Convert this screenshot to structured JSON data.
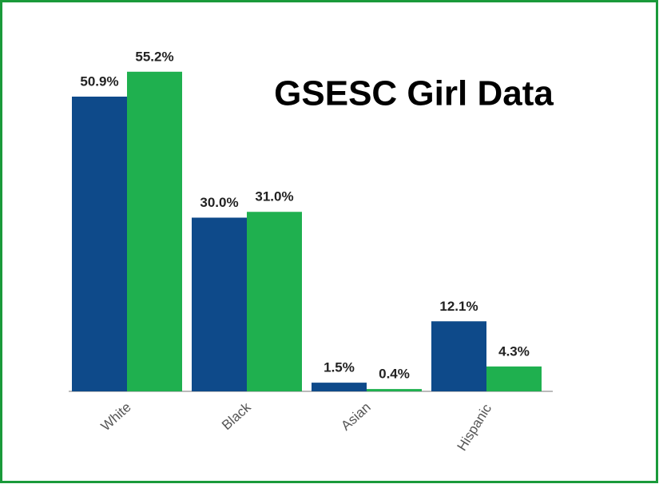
{
  "chart_data": {
    "type": "bar",
    "title": "GSESC Girl Data",
    "categories": [
      "White",
      "Black",
      "Asian",
      "Hispanic"
    ],
    "series": [
      {
        "color": "#0e4a8a",
        "values": [
          50.9,
          30.0,
          1.5,
          12.1
        ],
        "value_labels": [
          "50.9%",
          "30.0%",
          "1.5%",
          "12.1%"
        ]
      },
      {
        "color": "#1fb04f",
        "values": [
          55.2,
          31.0,
          0.4,
          4.3
        ],
        "value_labels": [
          "55.2%",
          "31.0%",
          "0.4%",
          "4.3%"
        ]
      }
    ],
    "ylim": [
      0,
      60
    ]
  }
}
